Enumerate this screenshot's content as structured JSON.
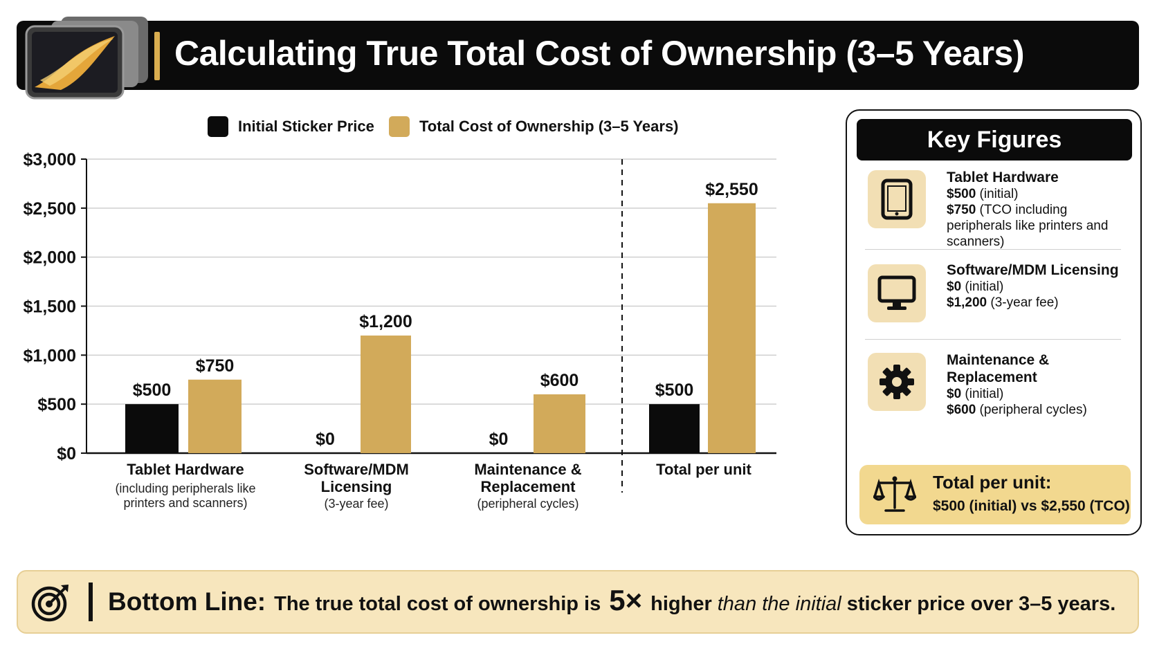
{
  "header": {
    "title": "Calculating True Total Cost of Ownership (3–5 Years)"
  },
  "legend": {
    "initial": "Initial Sticker Price",
    "tco": "Total Cost of Ownership (3–5 Years)"
  },
  "colors": {
    "initial": "#0b0b0b",
    "tco": "#d2aa5a",
    "accent": "#d9ad4f",
    "panel": "#f2dfb4"
  },
  "chart_data": {
    "type": "bar",
    "title": "",
    "xlabel": "",
    "ylabel": "",
    "ylim": [
      0,
      3000
    ],
    "yticks": [
      0,
      500,
      1000,
      1500,
      2000,
      2500,
      3000
    ],
    "ytick_labels": [
      "$0",
      "$500",
      "$1,000",
      "$1,500",
      "$2,000",
      "$2,500",
      "$3,000"
    ],
    "grid": true,
    "legend_position": "top",
    "categories": [
      {
        "label": "Tablet Hardware",
        "sublabel": "(including peripherals like printers and scanners)"
      },
      {
        "label": "Software/MDM Licensing",
        "sublabel": "(3-year fee)"
      },
      {
        "label": "Maintenance & Replacement",
        "sublabel": "(peripheral cycles)"
      },
      {
        "label": "Total per unit",
        "sublabel": ""
      }
    ],
    "series": [
      {
        "name": "Initial Sticker Price",
        "values": [
          500,
          0,
          0,
          500
        ],
        "labels": [
          "$500",
          "$0",
          "$0",
          "$500"
        ]
      },
      {
        "name": "Total Cost of Ownership (3–5 Years)",
        "values": [
          750,
          1200,
          600,
          2550
        ],
        "labels": [
          "$750",
          "$1,200",
          "$600",
          "$2,550"
        ]
      }
    ]
  },
  "key_figures": {
    "title": "Key Figures",
    "items": [
      {
        "icon": "tablet-icon",
        "name": "Tablet Hardware",
        "initial_value": "$500",
        "initial_suffix": " (initial)",
        "tco_value": "$750",
        "tco_suffix": " (TCO including peripherals like printers and scanners)"
      },
      {
        "icon": "monitor-icon",
        "name": "Software/MDM Licensing",
        "initial_value": "$0",
        "initial_suffix": " (initial)",
        "tco_value": "$1,200",
        "tco_suffix": " (3-year fee)"
      },
      {
        "icon": "gear-icon",
        "name": "Maintenance & Replacement",
        "initial_value": "$0",
        "initial_suffix": " (initial)",
        "tco_value": "$600",
        "tco_suffix": " (peripheral cycles)"
      }
    ],
    "total": {
      "label": "Total per unit:",
      "value": "$500 (initial) vs $2,550 (TCO)",
      "icon": "scale-icon"
    }
  },
  "bottom_line": {
    "label": "Bottom Line:",
    "text1": "The true total cost of ownership is",
    "multiplier": "5×",
    "text2": "higher",
    "text_italic": "than the initial",
    "text3": "sticker price over 3–5 years.",
    "icon": "target-icon"
  }
}
